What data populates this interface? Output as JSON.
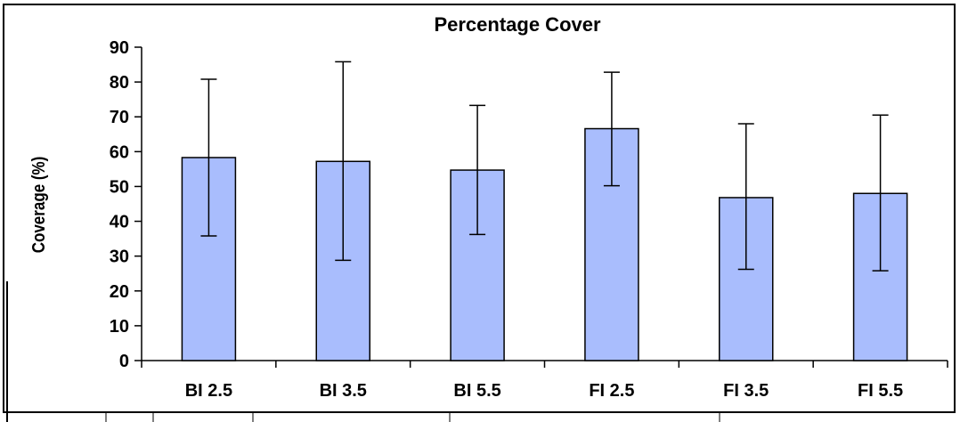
{
  "chart_data": {
    "type": "bar",
    "title": "Percentage Cover",
    "xlabel": "",
    "ylabel": "Coverage (%)",
    "categories": [
      "BI 2.5",
      "BI 3.5",
      "BI 5.5",
      "FI 2.5",
      "FI 3.5",
      "FI 5.5"
    ],
    "values": [
      58.3,
      57.2,
      54.7,
      66.6,
      46.8,
      48.0
    ],
    "error_upper": [
      80.8,
      85.8,
      73.3,
      82.8,
      68.0,
      70.5
    ],
    "error_lower": [
      35.8,
      28.8,
      36.2,
      50.2,
      26.2,
      25.8
    ],
    "ylim": [
      0,
      90
    ],
    "yticks": [
      0,
      10,
      20,
      30,
      40,
      50,
      60,
      70,
      80,
      90
    ],
    "grid": false,
    "legend": "none",
    "colors": {
      "bar_fill": "#a9bdfd",
      "bar_stroke": "#000000",
      "axis": "#000000",
      "border": "#000000"
    }
  }
}
